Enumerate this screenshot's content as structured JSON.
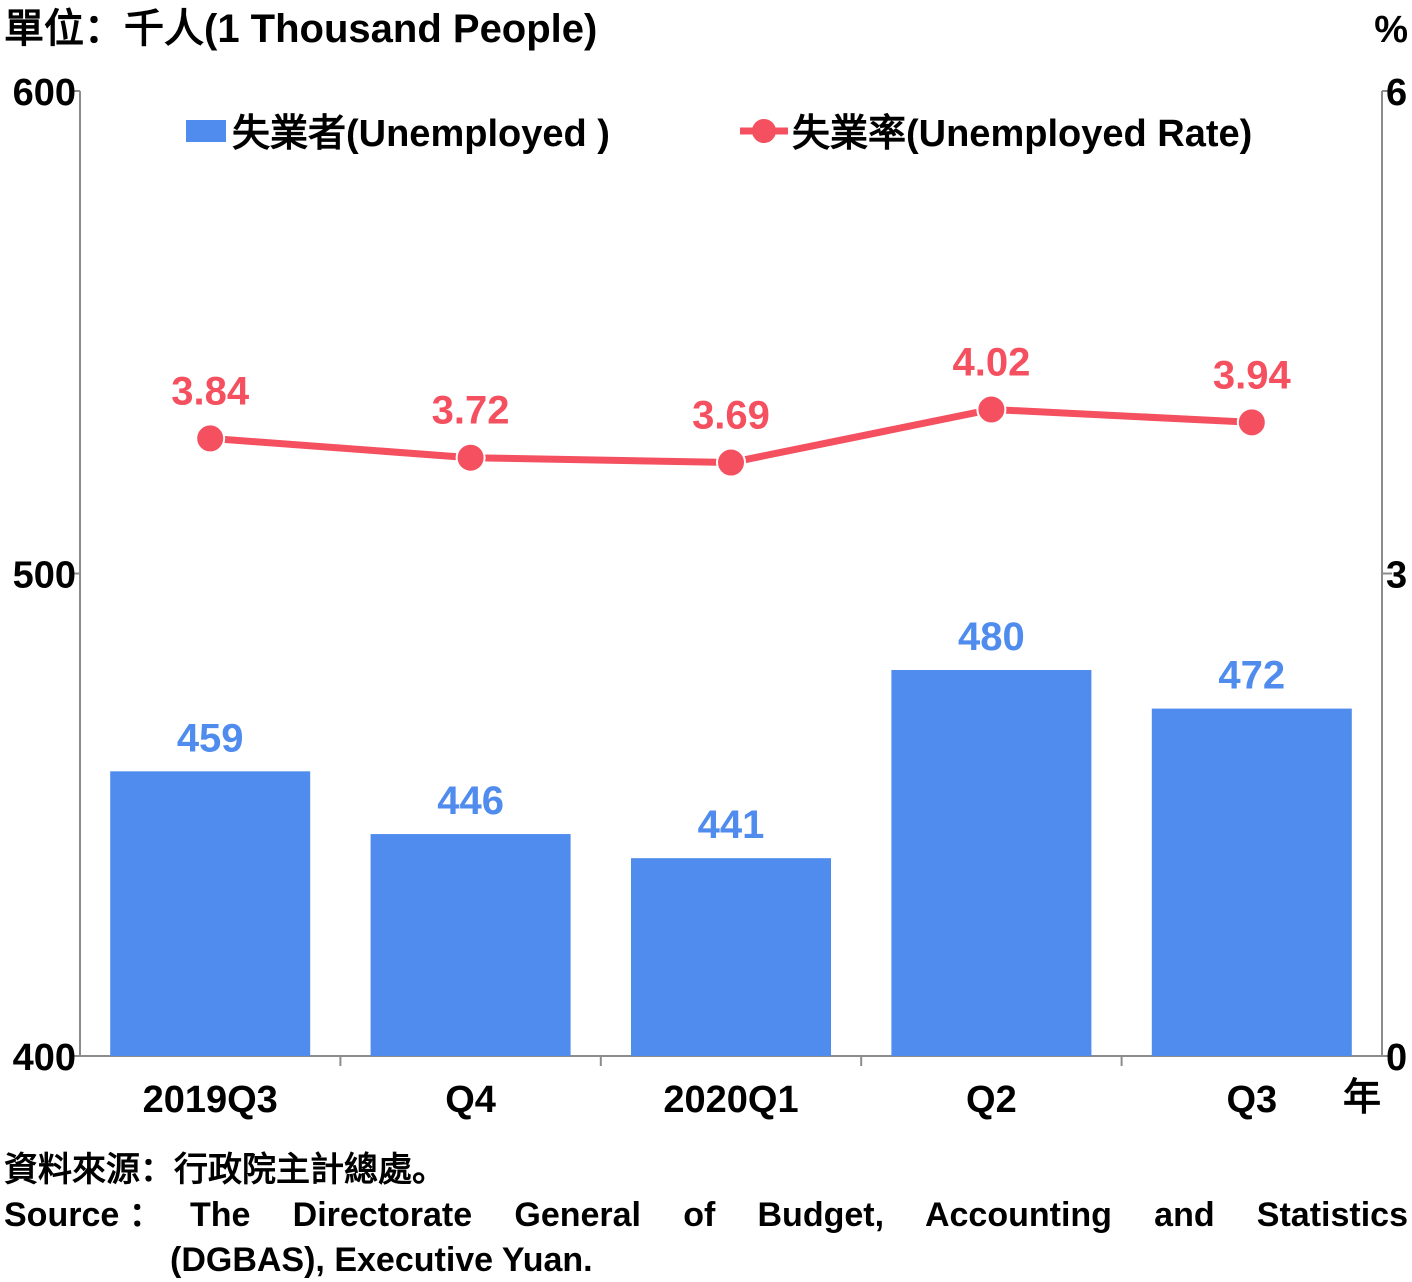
{
  "chart_data": {
    "type": "bar",
    "left_axis_label": "單位：千人(1 Thousand People)",
    "right_axis_label": "%",
    "x_unit_label": "年",
    "categories": [
      "2019Q3",
      "Q4",
      "2020Q1",
      "Q2",
      "Q3"
    ],
    "left_ylim": [
      400,
      600
    ],
    "left_ticks": [
      "400",
      "500",
      "600"
    ],
    "right_ylim": [
      0,
      6
    ],
    "right_ticks": [
      "0",
      "3",
      "6"
    ],
    "series": [
      {
        "name": "失業者(Unemployed )",
        "type": "bar",
        "axis": "left",
        "values": [
          459,
          446,
          441,
          480,
          472
        ],
        "labels": [
          "459",
          "446",
          "441",
          "480",
          "472"
        ],
        "color": "#4f8ced"
      },
      {
        "name": "失業率(Unemployed Rate)",
        "type": "line",
        "axis": "right",
        "values": [
          3.84,
          3.72,
          3.69,
          4.02,
          3.94
        ],
        "labels": [
          "3.84",
          "3.72",
          "3.69",
          "4.02",
          "3.94"
        ],
        "color": "#f4505f"
      }
    ],
    "legend_position": "top",
    "grid": false
  },
  "source": {
    "zh": "資料來源：行政院主計總處。",
    "en_prefix": "Source ：",
    "en_line1": "The Directorate General of Budget, Accounting and Statistics",
    "en_line2": "(DGBAS), Executive Yuan."
  },
  "colors": {
    "bar": "#4f8ced",
    "line": "#f4505f",
    "axis": "#8c8c8c"
  }
}
